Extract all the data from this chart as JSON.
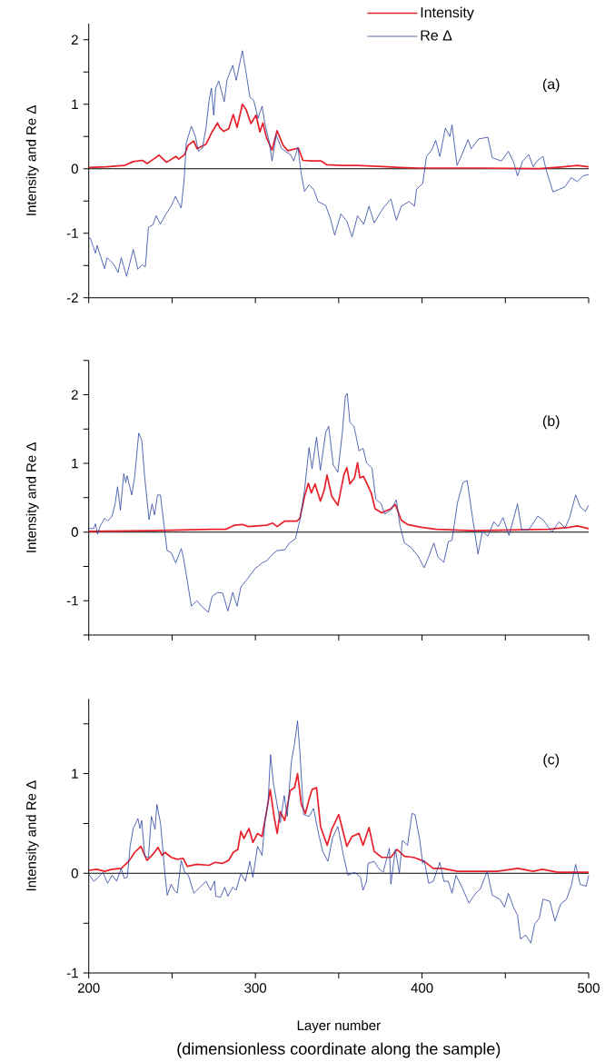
{
  "chart_data": [
    {
      "type": "line",
      "ylabel": "Intensity and Re Δ",
      "annotations": [
        "(a)"
      ],
      "legend": "top right",
      "tick_labels": "y",
      "marker": "none",
      "xlim": [
        200,
        500
      ],
      "xticks": [
        200,
        {
          "value": 250,
          "label": null
        },
        300,
        {
          "value": 350,
          "label": null
        },
        400,
        {
          "value": 450,
          "label": null
        },
        500
      ],
      "ylim": [
        -2,
        2.25
      ],
      "yticks": [
        -2,
        {
          "value": -1.5,
          "label": null
        },
        -1,
        {
          "value": -0.5,
          "label": null
        },
        0,
        {
          "value": 0.5,
          "label": null
        },
        1,
        {
          "value": 1.5,
          "label": null
        },
        2
      ],
      "ref_lines": [
        {
          "axis": "y",
          "value": 0,
          "color": "#000000"
        }
      ],
      "series": [
        {
          "name": "Intensity",
          "color": "#e8202a",
          "x": [
            200,
            210.4,
            221.3,
            226.7,
            232.2,
            235,
            239.5,
            242.2,
            246.7,
            252.2,
            254,
            257.6,
            259.5,
            263,
            265,
            270.4,
            274,
            277.3,
            278.5,
            281,
            284,
            286.7,
            289,
            292.2,
            294.4,
            297.3,
            300.4,
            302.7,
            304.5,
            306.7,
            310,
            313,
            316.7,
            319.5,
            325.8,
            328.5,
            334,
            339.5,
            343,
            352.2,
            361.3,
            379.5,
            386.7,
            397.6,
            434,
            470.4,
            485,
            493.1,
            500
          ],
          "values": [
            0.02,
            0.03,
            0.05,
            0.11,
            0.13,
            0.08,
            0.16,
            0.21,
            0.1,
            0.19,
            0.15,
            0.22,
            0.36,
            0.43,
            0.31,
            0.38,
            0.57,
            0.71,
            0.64,
            0.58,
            0.62,
            0.84,
            0.64,
            1.0,
            0.92,
            0.7,
            0.83,
            0.57,
            0.71,
            0.48,
            0.29,
            0.59,
            0.36,
            0.28,
            0.32,
            0.13,
            0.12,
            0.12,
            0.06,
            0.05,
            0.05,
            0.03,
            0.02,
            0.01,
            0.01,
            0.0,
            0.03,
            0.05,
            0.03
          ]
        },
        {
          "name": "Re Δ",
          "color": "#2b44a0",
          "x": [
            200,
            201,
            204,
            205,
            209.5,
            211,
            215,
            217.6,
            219.5,
            222.7,
            226.7,
            229.5,
            232,
            234,
            235.8,
            238.5,
            240.4,
            243,
            246.4,
            249.5,
            252,
            255.5,
            257.3,
            258.5,
            261.6,
            264,
            265.8,
            268.2,
            270.4,
            272.2,
            273.6,
            275,
            276.2,
            278,
            281.3,
            283,
            286.4,
            288.5,
            292.2,
            294.4,
            296.7,
            299,
            301.6,
            304,
            305.8,
            308.2,
            310,
            312.5,
            315.8,
            318.5,
            321,
            323,
            325.5,
            327.6,
            329.5,
            332.2,
            335,
            337.6,
            342.2,
            345,
            347.6,
            351.3,
            355,
            358,
            361.3,
            365,
            368.2,
            371.3,
            376.7,
            381.3,
            384.6,
            387.6,
            392.2,
            395.5,
            396.7,
            400.4,
            402.7,
            405.8,
            408.2,
            410.7,
            414,
            416.7,
            418,
            421,
            424,
            427.6,
            429.5,
            434,
            439.5,
            442.2,
            447.6,
            451.8,
            455,
            457.3,
            460.4,
            464,
            466.7,
            469,
            472.6,
            474.4,
            478.6,
            482.2,
            485.8,
            489.5,
            493.1,
            496.7,
            500
          ],
          "values": [
            -1.07,
            -1.08,
            -1.31,
            -1.19,
            -1.55,
            -1.38,
            -1.48,
            -1.61,
            -1.38,
            -1.67,
            -1.25,
            -1.56,
            -1.49,
            -1.52,
            -0.91,
            -0.87,
            -0.73,
            -0.86,
            -0.7,
            -0.58,
            -0.43,
            -0.61,
            -0.16,
            0.4,
            0.66,
            0.5,
            0.27,
            0.32,
            0.64,
            1.06,
            1.25,
            0.83,
            1.25,
            1.36,
            1.04,
            1.38,
            1.6,
            1.37,
            1.83,
            1.49,
            1.11,
            1.06,
            0.78,
            0.97,
            0.69,
            0.43,
            0.12,
            0.52,
            0.31,
            0.26,
            0.22,
            0.12,
            0.33,
            -0.09,
            -0.35,
            -0.25,
            -0.32,
            -0.51,
            -0.57,
            -0.77,
            -1.03,
            -0.7,
            -0.82,
            -1.06,
            -0.73,
            -0.86,
            -0.58,
            -0.84,
            -0.61,
            -0.47,
            -0.8,
            -0.58,
            -0.51,
            -0.58,
            -0.32,
            -0.23,
            0.19,
            0.29,
            0.44,
            0.19,
            0.63,
            0.5,
            0.68,
            0.05,
            0.22,
            0.45,
            0.31,
            0.46,
            0.49,
            0.17,
            0.12,
            0.27,
            0.1,
            -0.11,
            0.12,
            0.22,
            0.03,
            0.12,
            0.19,
            -0.01,
            -0.36,
            -0.32,
            -0.28,
            -0.14,
            -0.2,
            -0.11,
            -0.09
          ]
        }
      ]
    },
    {
      "type": "line",
      "ylabel": "Intensity and Re Δ",
      "annotations": [
        "(b)"
      ],
      "tick_labels": "y",
      "marker": "none",
      "xlim": [
        200,
        500
      ],
      "xticks": [
        200,
        {
          "value": 250,
          "label": null
        },
        300,
        {
          "value": 350,
          "label": null
        },
        400,
        {
          "value": 450,
          "label": null
        },
        500
      ],
      "ylim": [
        -1.5,
        2.5
      ],
      "yticks": [
        {
          "value": -1.5,
          "label": null
        },
        -1,
        {
          "value": -0.5,
          "label": null
        },
        0,
        {
          "value": 0.5,
          "label": null
        },
        1,
        {
          "value": 1.5,
          "label": null
        },
        2,
        {
          "value": 2.5,
          "label": null
        }
      ],
      "ref_lines": [
        {
          "axis": "y",
          "value": 0,
          "color": "#000000"
        }
      ],
      "series": [
        {
          "color": "#e8202a",
          "x": [
            200,
            237.6,
            274,
            282.2,
            287.6,
            292.2,
            295.8,
            306.7,
            310.4,
            313.1,
            317.6,
            324.9,
            326.7,
            329.5,
            331.8,
            333.6,
            335.8,
            339,
            341.3,
            343,
            345.8,
            349.5,
            353.1,
            354.9,
            356.7,
            359.5,
            361.3,
            362.7,
            364.9,
            369.5,
            371.8,
            375.8,
            381.3,
            384,
            387.6,
            391.3,
            399.5,
            408.6,
            419.5,
            430.4,
            452.2,
            475.8,
            488.6,
            493.1,
            500
          ],
          "values": [
            0.01,
            0.02,
            0.04,
            0.04,
            0.1,
            0.11,
            0.08,
            0.1,
            0.13,
            0.08,
            0.16,
            0.16,
            0.2,
            0.52,
            0.71,
            0.57,
            0.7,
            0.45,
            0.61,
            0.83,
            0.52,
            0.39,
            0.83,
            0.94,
            0.7,
            0.79,
            1.01,
            0.79,
            0.81,
            0.57,
            0.34,
            0.28,
            0.34,
            0.4,
            0.17,
            0.11,
            0.07,
            0.04,
            0.03,
            0.02,
            0.03,
            0.04,
            0.07,
            0.09,
            0.05
          ]
        },
        {
          "color": "#2b44a0",
          "x": [
            200,
            203,
            204,
            205.3,
            206.7,
            209.5,
            211.3,
            214,
            215.8,
            217.3,
            219,
            221,
            222.2,
            223,
            225.8,
            227.6,
            230,
            231.8,
            233.6,
            236.2,
            238,
            239.5,
            241.3,
            243,
            245.8,
            247,
            249.5,
            252.2,
            255.5,
            256.7,
            259,
            261.6,
            264.9,
            267.6,
            271.8,
            274,
            277.3,
            280.4,
            283.5,
            286.4,
            289,
            291.3,
            295,
            299.5,
            304,
            306.7,
            310.4,
            313,
            317.6,
            320.4,
            324,
            326.7,
            329.5,
            332.2,
            334,
            336.7,
            339,
            342.2,
            344,
            346.7,
            349.5,
            352.2,
            354,
            355.1,
            356.7,
            359.1,
            360.4,
            362.2,
            364.6,
            366.7,
            370,
            372.2,
            375.5,
            377.6,
            381.3,
            384.6,
            386.7,
            389.5,
            393.1,
            397.6,
            401.3,
            404,
            407.1,
            409.5,
            413.1,
            415.8,
            418,
            421.3,
            424.6,
            427.1,
            430,
            433.6,
            436.2,
            439.5,
            443.1,
            445.8,
            448.6,
            452.2,
            454.9,
            457.3,
            459.8,
            464,
            469.5,
            472.6,
            478,
            482.2,
            485.8,
            488.6,
            492.2,
            494.9,
            498,
            500
          ],
          "values": [
            0.05,
            0.05,
            0.12,
            -0.03,
            0.08,
            0.2,
            0.16,
            0.23,
            0.41,
            0.66,
            0.32,
            0.85,
            0.72,
            0.82,
            0.54,
            0.81,
            1.44,
            1.34,
            0.79,
            0.18,
            0.41,
            0.25,
            0.54,
            0.54,
            -0.03,
            -0.27,
            -0.3,
            -0.45,
            -0.24,
            -0.36,
            -0.69,
            -1.08,
            -1.0,
            -1.08,
            -1.17,
            -0.94,
            -0.88,
            -0.89,
            -1.15,
            -0.88,
            -1.08,
            -0.8,
            -0.69,
            -0.54,
            -0.45,
            -0.42,
            -0.32,
            -0.27,
            -0.26,
            -0.16,
            -0.1,
            0.17,
            0.61,
            1.23,
            0.92,
            1.38,
            0.9,
            1.45,
            1.54,
            0.98,
            0.87,
            1.45,
            1.98,
            2.02,
            1.6,
            1.54,
            1.4,
            1.18,
            1.22,
            1.01,
            0.93,
            0.48,
            0.41,
            0.26,
            0.32,
            0.47,
            0.1,
            -0.16,
            -0.22,
            -0.35,
            -0.52,
            -0.36,
            -0.16,
            -0.36,
            -0.44,
            -0.14,
            -0.12,
            0.43,
            0.72,
            0.75,
            0.26,
            -0.32,
            0.01,
            -0.06,
            0.15,
            0.08,
            0.21,
            -0.05,
            0.19,
            0.41,
            0.03,
            0.03,
            0.23,
            0.18,
            0.0,
            0.15,
            0.06,
            0.21,
            0.54,
            0.37,
            0.3,
            0.39
          ]
        }
      ]
    },
    {
      "type": "line",
      "ylabel": "Intensity and Re Δ",
      "xlabel": "Layer number",
      "annotations": [
        "(c)",
        "(dimensionless coordinate along the sample)"
      ],
      "marker": "none",
      "xlim": [
        200,
        500
      ],
      "xticks": [
        200,
        {
          "value": 250,
          "label": null
        },
        300,
        {
          "value": 350,
          "label": null
        },
        400,
        {
          "value": 450,
          "label": null
        },
        500
      ],
      "ylim": [
        -1,
        1.75
      ],
      "yticks": [
        -1,
        {
          "value": -0.5,
          "label": null
        },
        0,
        {
          "value": 0.5,
          "label": null
        },
        1,
        {
          "value": 1.5,
          "label": null
        }
      ],
      "ref_lines": [
        {
          "axis": "y",
          "value": 0,
          "color": "#000000"
        }
      ],
      "series": [
        {
          "color": "#e8202a",
          "x": [
            200,
            204.9,
            209.5,
            214,
            219.5,
            224,
            227.6,
            231.3,
            234.9,
            238.5,
            241.6,
            244,
            245.8,
            249.5,
            253.1,
            256.7,
            259.1,
            264.9,
            272.2,
            275.8,
            280.4,
            284,
            286.7,
            289.5,
            291.3,
            293.1,
            296.2,
            298.5,
            301.3,
            304,
            306.4,
            308.9,
            311.3,
            313.1,
            314.9,
            317.6,
            320.9,
            323.5,
            325.3,
            327.6,
            330,
            332.2,
            334,
            336.7,
            339.1,
            343.1,
            345.8,
            350,
            354.9,
            358,
            362.2,
            364.6,
            368.2,
            371.3,
            375.8,
            381.3,
            384.9,
            389.5,
            394.9,
            401.3,
            406.7,
            412.2,
            421.3,
            434,
            444.9,
            457.6,
            466.7,
            472.2,
            481.3,
            500
          ],
          "values": [
            0.03,
            0.04,
            0.02,
            0.04,
            0.05,
            0.12,
            0.21,
            0.27,
            0.13,
            0.19,
            0.26,
            0.18,
            0.21,
            0.16,
            0.14,
            0.15,
            0.07,
            0.09,
            0.08,
            0.11,
            0.1,
            0.13,
            0.21,
            0.24,
            0.42,
            0.35,
            0.45,
            0.31,
            0.4,
            0.37,
            0.59,
            0.84,
            0.56,
            0.4,
            0.62,
            0.53,
            0.83,
            0.86,
            1.0,
            0.69,
            0.6,
            0.74,
            0.84,
            0.86,
            0.47,
            0.28,
            0.44,
            0.59,
            0.27,
            0.37,
            0.4,
            0.28,
            0.46,
            0.22,
            0.16,
            0.16,
            0.24,
            0.17,
            0.16,
            0.12,
            0.05,
            0.05,
            0.02,
            0.02,
            0.02,
            0.05,
            0.02,
            0.04,
            0.01,
            0.01
          ]
        },
        {
          "color": "#2b44a0",
          "x": [
            200,
            203.1,
            205.8,
            208.5,
            211.3,
            214,
            216.7,
            219.5,
            221.3,
            223.1,
            224.9,
            226.7,
            229.5,
            230.7,
            231.8,
            233.6,
            235.8,
            237.6,
            239.8,
            240.9,
            243.1,
            245.8,
            247.1,
            249.5,
            251.3,
            253.1,
            255.5,
            257.6,
            259.8,
            263.1,
            266.7,
            270.4,
            273.1,
            275.5,
            276.2,
            279.1,
            281.6,
            283.5,
            286.4,
            288.5,
            291.3,
            294,
            296.7,
            298.5,
            301.3,
            304,
            305.8,
            307.6,
            309.1,
            310.7,
            312.5,
            314.9,
            317.3,
            319.1,
            321.6,
            323.5,
            325.3,
            326.7,
            328.9,
            332.2,
            334.9,
            338,
            340.4,
            343.5,
            346.4,
            349.5,
            353.1,
            355.5,
            359.5,
            363.1,
            364.6,
            366.7,
            367.6,
            371.3,
            374,
            376.7,
            380.4,
            381.3,
            384,
            386.4,
            388.2,
            391.3,
            394,
            395.8,
            398.6,
            400.4,
            401.3,
            404,
            406.7,
            410.7,
            413.1,
            415.8,
            418,
            420.4,
            424,
            428.2,
            432.2,
            434.9,
            439.1,
            442.2,
            446.7,
            449.5,
            451.8,
            454.9,
            457.3,
            459.1,
            462.2,
            465.3,
            467.6,
            470.4,
            472.6,
            476.7,
            479.8,
            483.1,
            486.7,
            489.5,
            492.2,
            494.9,
            498.5,
            500
          ],
          "values": [
            -0.01,
            -0.08,
            -0.04,
            0.01,
            -0.1,
            -0.02,
            -0.08,
            0.05,
            -0.05,
            -0.04,
            0.28,
            0.45,
            0.55,
            0.45,
            0.53,
            0.17,
            0.16,
            0.57,
            0.44,
            0.69,
            0.5,
            -0.02,
            -0.22,
            -0.11,
            -0.17,
            -0.2,
            0.13,
            0.01,
            -0.02,
            -0.2,
            -0.14,
            -0.08,
            -0.17,
            -0.08,
            -0.23,
            -0.24,
            -0.14,
            -0.23,
            -0.14,
            -0.17,
            0.0,
            -0.08,
            0.12,
            -0.04,
            0.27,
            0.18,
            0.53,
            0.71,
            1.19,
            0.92,
            0.74,
            0.51,
            0.78,
            0.57,
            1.12,
            1.3,
            1.53,
            1.22,
            0.59,
            0.57,
            0.65,
            0.39,
            0.22,
            0.12,
            0.36,
            0.47,
            0.16,
            -0.02,
            0.01,
            -0.04,
            -0.17,
            -0.08,
            0.1,
            0.12,
            0.05,
            0.01,
            0.25,
            -0.11,
            0.24,
            0.0,
            0.33,
            0.28,
            0.6,
            0.59,
            0.34,
            0.1,
            0.13,
            -0.1,
            -0.08,
            0.11,
            -0.08,
            -0.08,
            -0.2,
            -0.02,
            -0.14,
            -0.3,
            -0.2,
            -0.16,
            0.02,
            -0.22,
            -0.26,
            -0.34,
            -0.2,
            -0.34,
            -0.42,
            -0.66,
            -0.62,
            -0.7,
            -0.51,
            -0.45,
            -0.26,
            -0.28,
            -0.48,
            -0.31,
            -0.26,
            -0.13,
            0.09,
            -0.11,
            -0.13,
            -0.02
          ]
        }
      ]
    }
  ]
}
